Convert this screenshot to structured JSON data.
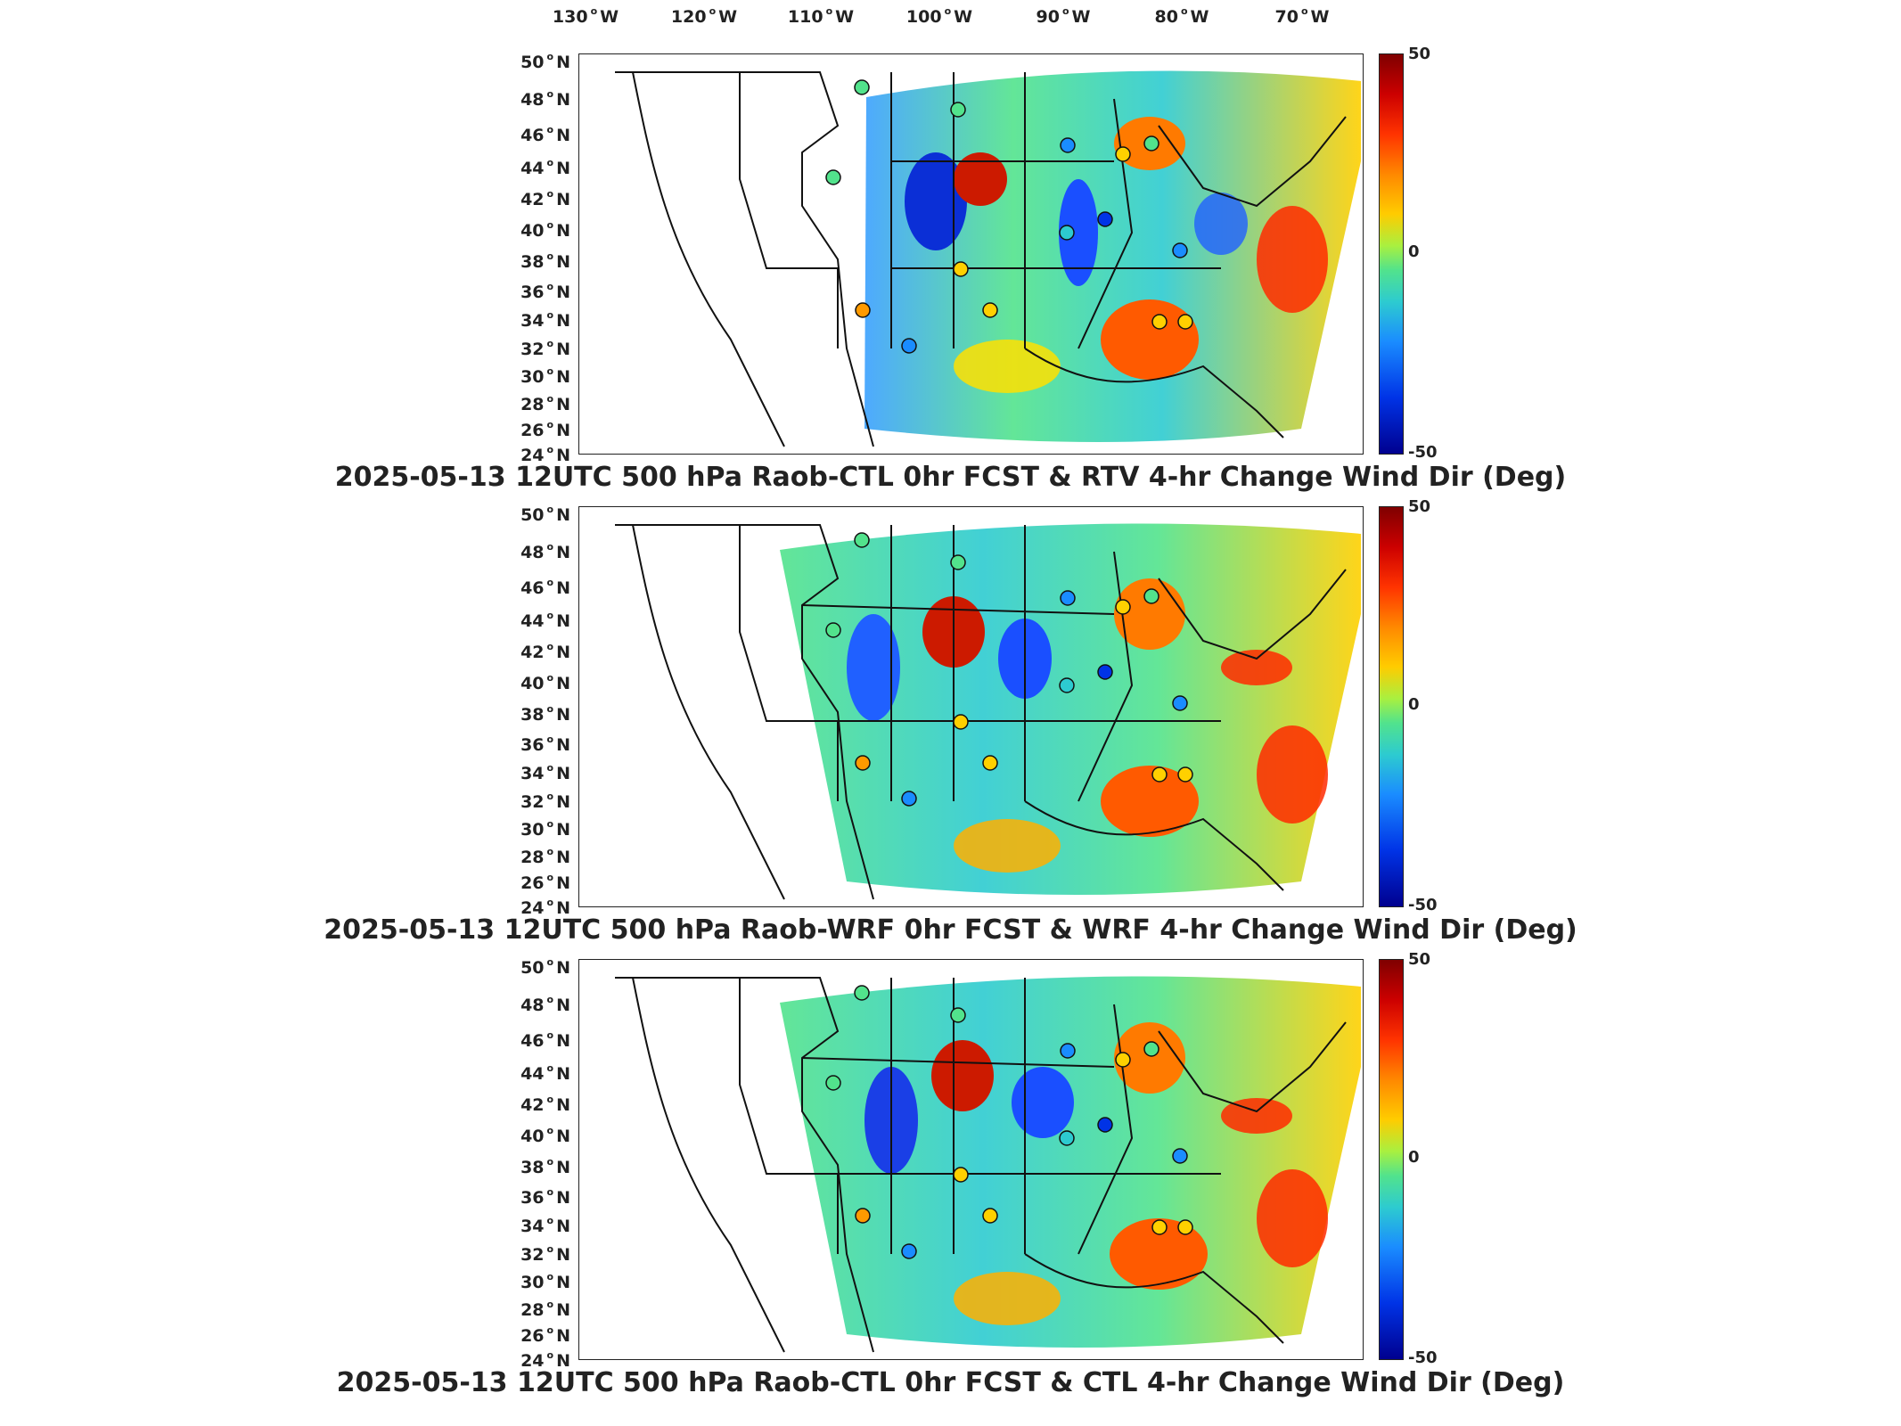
{
  "longitude_labels": [
    {
      "value": "130",
      "hemi": "W"
    },
    {
      "value": "120",
      "hemi": "W"
    },
    {
      "value": "110",
      "hemi": "W"
    },
    {
      "value": "100",
      "hemi": "W"
    },
    {
      "value": "90",
      "hemi": "W"
    },
    {
      "value": "80",
      "hemi": "W"
    },
    {
      "value": "70",
      "hemi": "W"
    }
  ],
  "latitude_labels": [
    "50",
    "48",
    "46",
    "44",
    "42",
    "40",
    "38",
    "36",
    "34",
    "32",
    "30",
    "28",
    "26",
    "24"
  ],
  "latitude_hemi": "N",
  "colorbar": {
    "max": "50",
    "mid": "0",
    "min": "-50",
    "colors": [
      "#7f0000",
      "#ff3300",
      "#ffcc00",
      "#52e38c",
      "#1a8cff",
      "#00008f"
    ]
  },
  "panels": [
    {
      "title": "2025-05-13 12UTC 500 hPa Raob-CTL 0hr FCST & RTV 4-hr Change Wind Dir (Deg)"
    },
    {
      "title": "2025-05-13 12UTC 500 hPa Raob-WRF 0hr FCST & WRF 4-hr Change Wind Dir (Deg)"
    },
    {
      "title": "2025-05-13 12UTC 500 hPa Raob-CTL 0hr FCST & CTL 4-hr Change Wind Dir (Deg)"
    }
  ]
}
